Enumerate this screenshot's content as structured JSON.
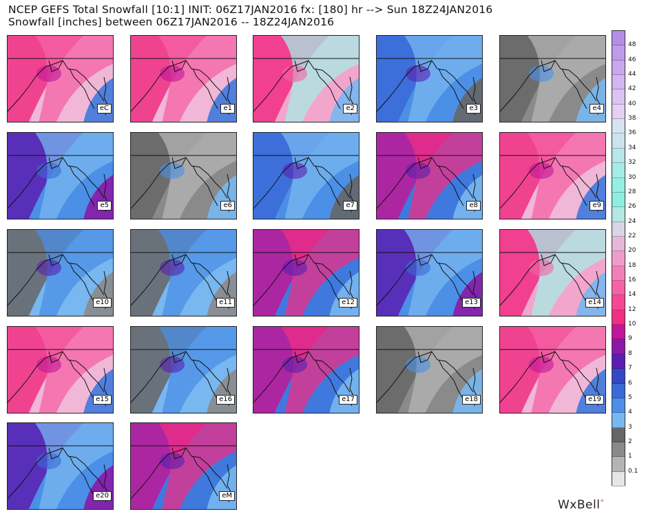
{
  "header": {
    "line1": "NCEP GEFS Total Snowfall [10:1] INIT: 06Z17JAN2016 fx: [180] hr --> Sun 18Z24JAN2016",
    "line2": "Snowfall [inches] between 06Z17JAN2016 -- 18Z24JAN2016"
  },
  "panels": [
    {
      "label": "eC",
      "scheme": "pink"
    },
    {
      "label": "e1",
      "scheme": "pink"
    },
    {
      "label": "e2",
      "scheme": "pinkcyan"
    },
    {
      "label": "e3",
      "scheme": "blue"
    },
    {
      "label": "e4",
      "scheme": "gray"
    },
    {
      "label": "e5",
      "scheme": "bluepurple"
    },
    {
      "label": "e6",
      "scheme": "gray"
    },
    {
      "label": "e7",
      "scheme": "blue"
    },
    {
      "label": "e8",
      "scheme": "magenta"
    },
    {
      "label": "e9",
      "scheme": "pink"
    },
    {
      "label": "e10",
      "scheme": "graylue"
    },
    {
      "label": "e11",
      "scheme": "graylue"
    },
    {
      "label": "e12",
      "scheme": "magenta"
    },
    {
      "label": "e13",
      "scheme": "bluepurple"
    },
    {
      "label": "e14",
      "scheme": "pinkcyan"
    },
    {
      "label": "e15",
      "scheme": "pink"
    },
    {
      "label": "e16",
      "scheme": "graylue"
    },
    {
      "label": "e17",
      "scheme": "magenta"
    },
    {
      "label": "e18",
      "scheme": "gray"
    },
    {
      "label": "e19",
      "scheme": "pink"
    },
    {
      "label": "e20",
      "scheme": "bluepurple"
    },
    {
      "label": "eM",
      "scheme": "magenta"
    }
  ],
  "colorbar": {
    "ticks": [
      "48",
      "46",
      "44",
      "42",
      "40",
      "38",
      "36",
      "34",
      "32",
      "30",
      "28",
      "26",
      "24",
      "22",
      "20",
      "18",
      "16",
      "14",
      "12",
      "10",
      "9",
      "8",
      "7",
      "6",
      "5",
      "4",
      "3",
      "2",
      "1",
      "0.1"
    ],
    "colors": [
      "#b58ee8",
      "#bf9bea",
      "#c9a8ed",
      "#d2b6ef",
      "#dbc3f2",
      "#e3d0f4",
      "#d8e2f0",
      "#cbe3ee",
      "#b8e6ea",
      "#a7ebe6",
      "#96f0e2",
      "#8defe0",
      "#b5e8e2",
      "#d8d6e6",
      "#e8b7d8",
      "#f09bcb",
      "#f47eb8",
      "#f662a6",
      "#f54794",
      "#ef2e84",
      "#c01898",
      "#8a1aa6",
      "#5a1fb0",
      "#3447c4",
      "#3a6ad6",
      "#4b8fe6",
      "#78b7f0",
      "#666666",
      "#8a8a8a",
      "#b4b4b4",
      "#e6e6e6"
    ]
  },
  "brand": {
    "name": "WxBell",
    "dot": "°"
  }
}
